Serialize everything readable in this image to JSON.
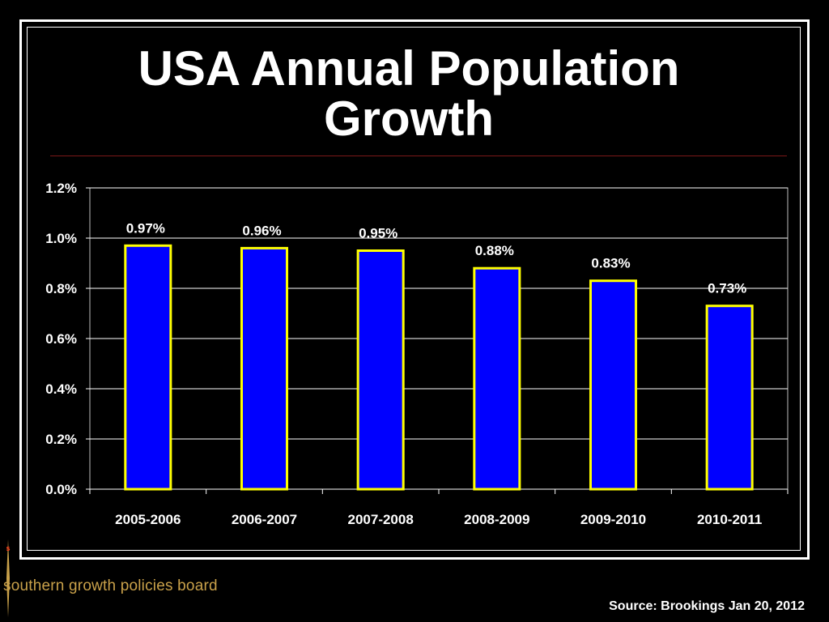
{
  "slide": {
    "title": "USA Annual Population Growth",
    "source": "Source: Brookings Jan 20, 2012",
    "logo_text": "southern growth policies board",
    "logo_mark_letter": "s"
  },
  "colors": {
    "background": "#000000",
    "frame": "#ffffff",
    "bar_fill": "#0000ff",
    "bar_border": "#ffff00",
    "gridline": "#ffffff",
    "title_rule": "#7a1818",
    "logo_text": "#c9a14a"
  },
  "chart_data": {
    "type": "bar",
    "title": "",
    "xlabel": "",
    "ylabel": "",
    "categories": [
      "2005-2006",
      "2006-2007",
      "2007-2008",
      "2008-2009",
      "2009-2010",
      "2010-2011"
    ],
    "values": [
      0.97,
      0.96,
      0.95,
      0.88,
      0.83,
      0.73
    ],
    "data_labels": [
      "0.97%",
      "0.96%",
      "0.95%",
      "0.88%",
      "0.83%",
      "0.73%"
    ],
    "ylim": [
      0,
      1.2
    ],
    "yticks": [
      0,
      0.2,
      0.4,
      0.6,
      0.8,
      1.0,
      1.2
    ],
    "ytick_labels": [
      "0.0%",
      "0.2%",
      "0.4%",
      "0.6%",
      "0.8%",
      "1.0%",
      "1.2%"
    ],
    "grid": true,
    "legend": "none"
  }
}
